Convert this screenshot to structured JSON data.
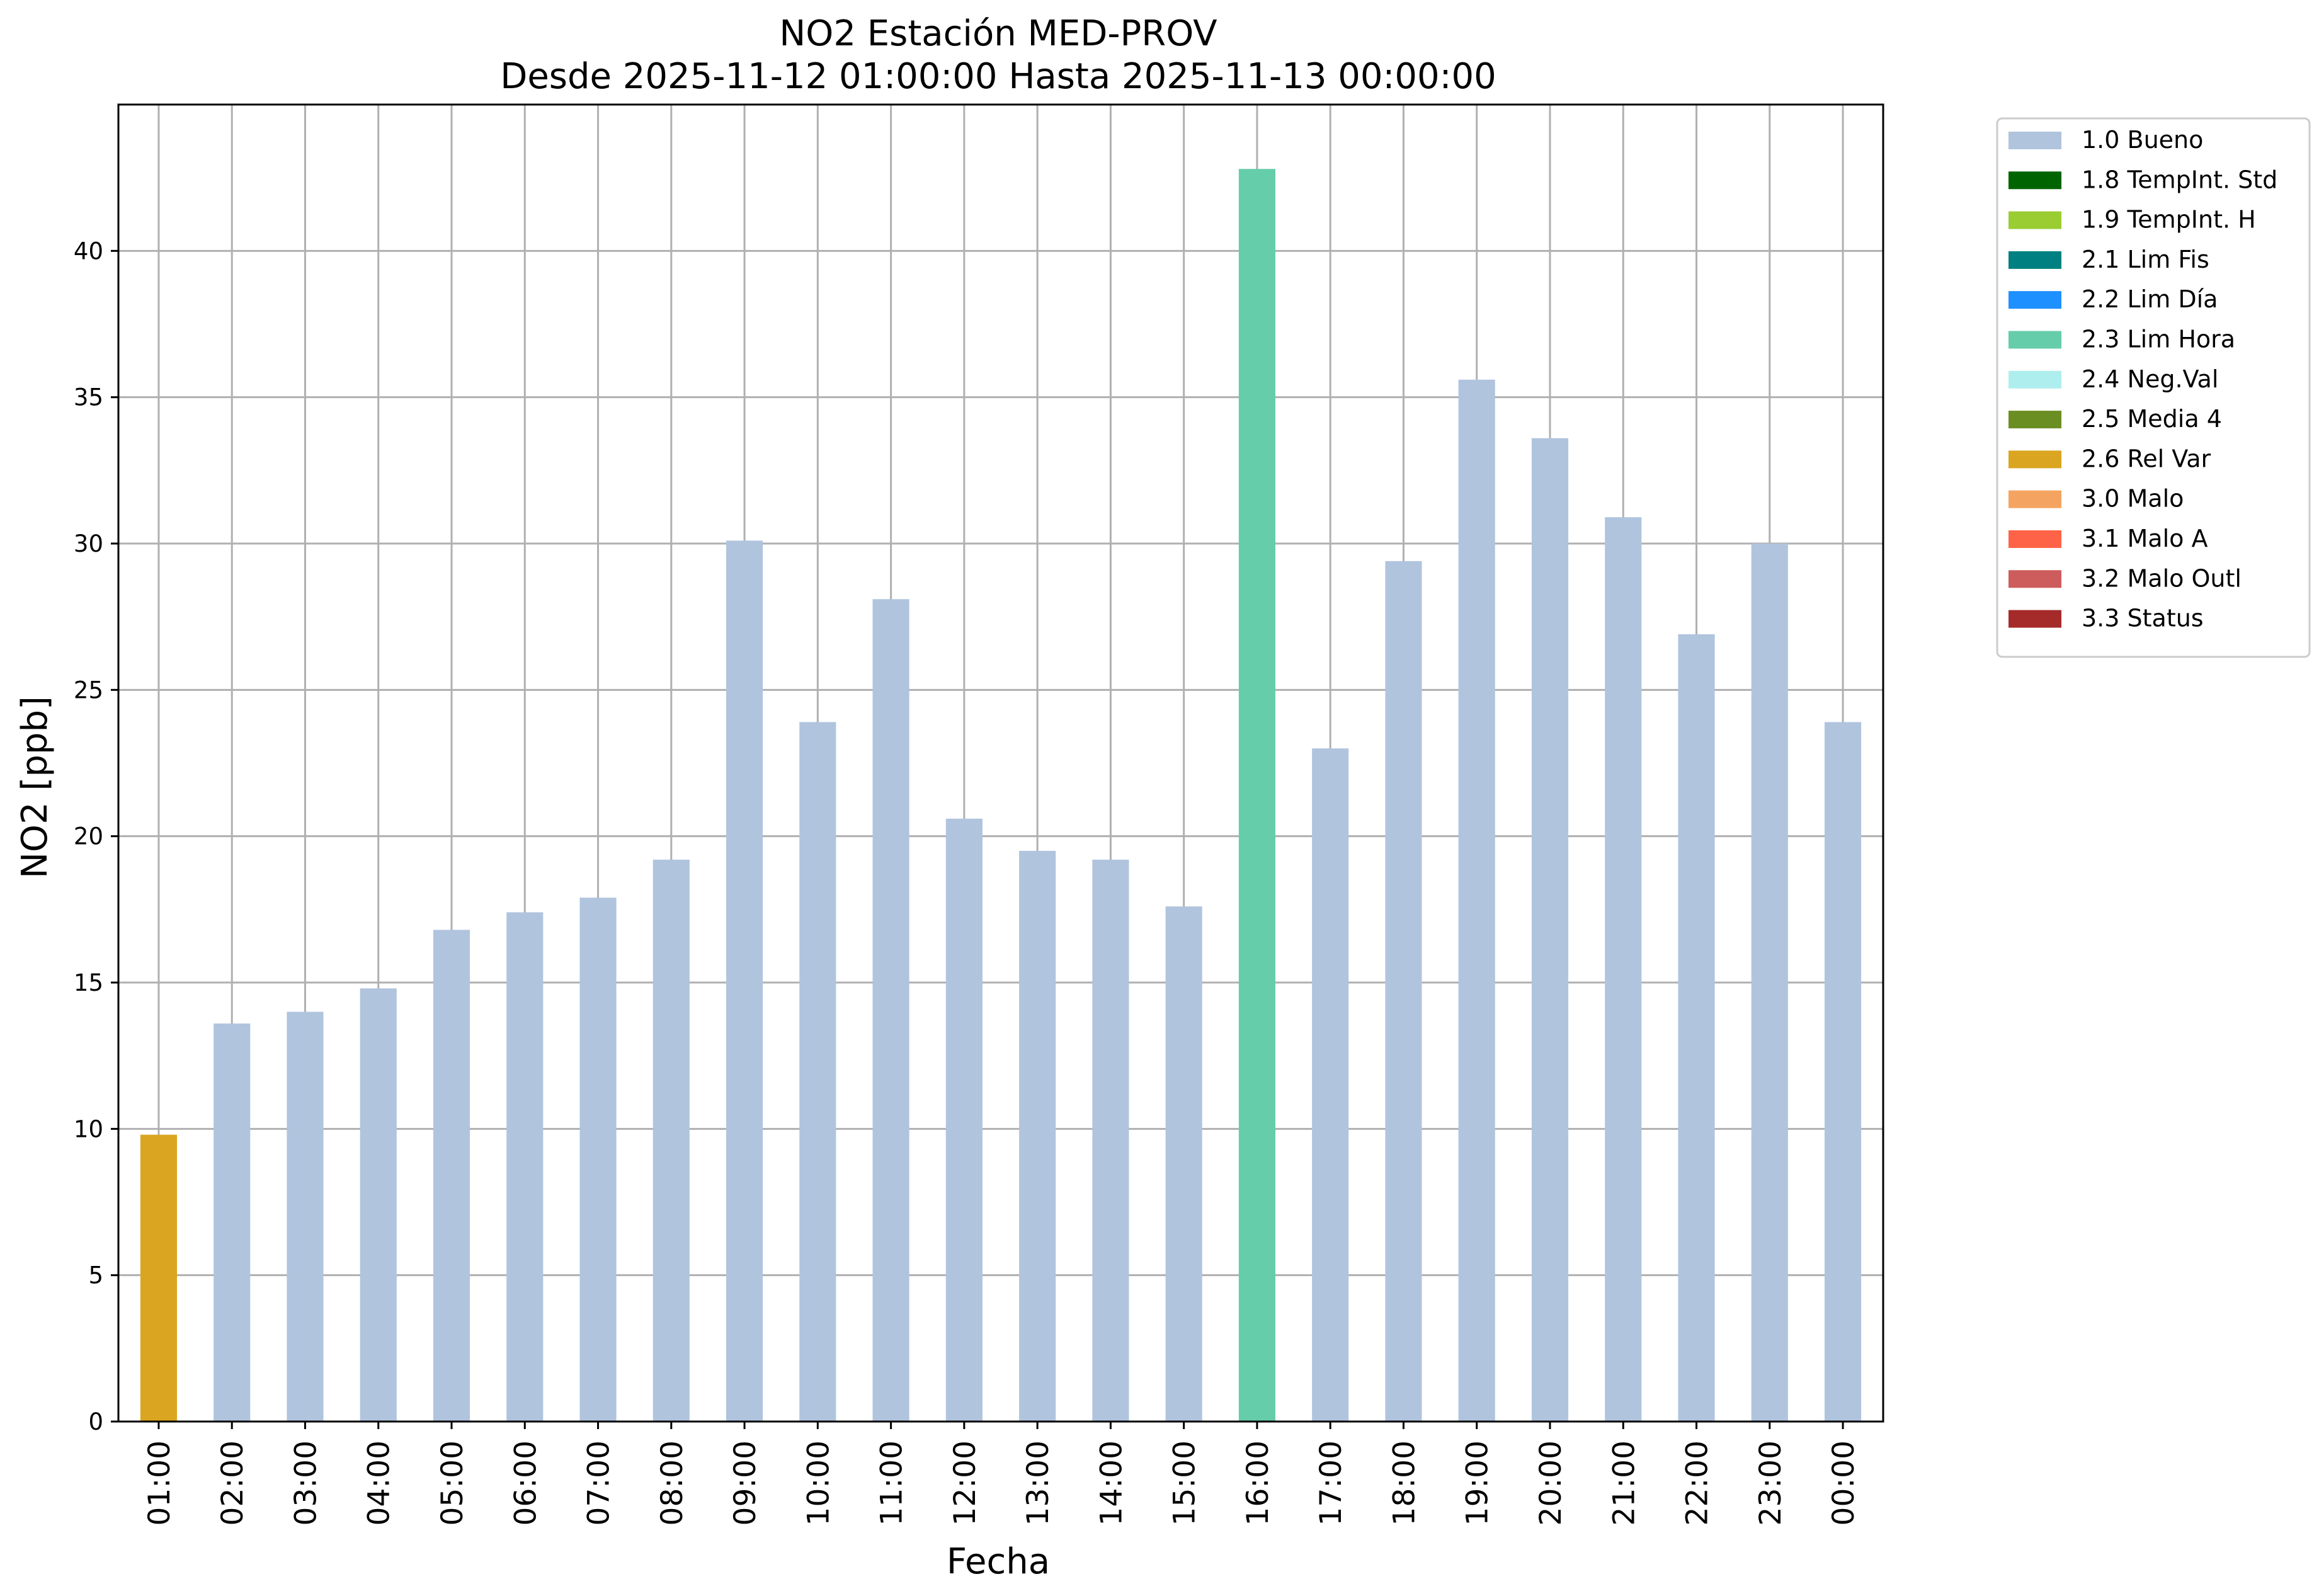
{
  "chart_data": {
    "type": "bar",
    "title": "NO2 Estación MED-PROV",
    "subtitle": "Desde 2025-11-12 01:00:00 Hasta 2025-11-13 00:00:00",
    "xlabel": "Fecha",
    "ylabel": "NO2 [ppb]",
    "ylim": [
      0,
      45
    ],
    "yticks": [
      0,
      5,
      10,
      15,
      20,
      25,
      30,
      35,
      40
    ],
    "grid": true,
    "legend_position": "outside-top-right",
    "categories": [
      "01:00",
      "02:00",
      "03:00",
      "04:00",
      "05:00",
      "06:00",
      "07:00",
      "08:00",
      "09:00",
      "10:00",
      "11:00",
      "12:00",
      "13:00",
      "14:00",
      "15:00",
      "16:00",
      "17:00",
      "18:00",
      "19:00",
      "20:00",
      "21:00",
      "22:00",
      "23:00",
      "00:00"
    ],
    "values": [
      9.8,
      13.6,
      14.0,
      14.8,
      16.8,
      17.4,
      17.9,
      19.2,
      30.1,
      23.9,
      28.1,
      20.6,
      19.5,
      19.2,
      17.6,
      42.8,
      23.0,
      29.4,
      35.6,
      33.6,
      30.9,
      26.9,
      30.0,
      23.9
    ],
    "flags": [
      "2.6",
      "1.0",
      "1.0",
      "1.0",
      "1.0",
      "1.0",
      "1.0",
      "1.0",
      "1.0",
      "1.0",
      "1.0",
      "1.0",
      "1.0",
      "1.0",
      "1.0",
      "2.3",
      "1.0",
      "1.0",
      "1.0",
      "1.0",
      "1.0",
      "1.0",
      "1.0",
      "1.0"
    ],
    "legend": [
      {
        "code": "1.0",
        "label": "1.0 Bueno",
        "color": "#b0c4de"
      },
      {
        "code": "1.8",
        "label": "1.8 TempInt. Std",
        "color": "#006400"
      },
      {
        "code": "1.9",
        "label": "1.9 TempInt. H",
        "color": "#9acd32"
      },
      {
        "code": "2.1",
        "label": "2.1 Lim Fis",
        "color": "#008080"
      },
      {
        "code": "2.2",
        "label": "2.2 Lim Día",
        "color": "#1e90ff"
      },
      {
        "code": "2.3",
        "label": "2.3 Lim Hora",
        "color": "#66cdaa"
      },
      {
        "code": "2.4",
        "label": "2.4 Neg.Val",
        "color": "#afeeee"
      },
      {
        "code": "2.5",
        "label": "2.5 Media 4",
        "color": "#6b8e23"
      },
      {
        "code": "2.6",
        "label": "2.6 Rel Var",
        "color": "#daa520"
      },
      {
        "code": "3.0",
        "label": "3.0 Malo",
        "color": "#f4a460"
      },
      {
        "code": "3.1",
        "label": "3.1 Malo A",
        "color": "#ff6347"
      },
      {
        "code": "3.2",
        "label": "3.2 Malo Outl",
        "color": "#cd5c5c"
      },
      {
        "code": "3.3",
        "label": "3.3 Status",
        "color": "#a52a2a"
      }
    ]
  }
}
